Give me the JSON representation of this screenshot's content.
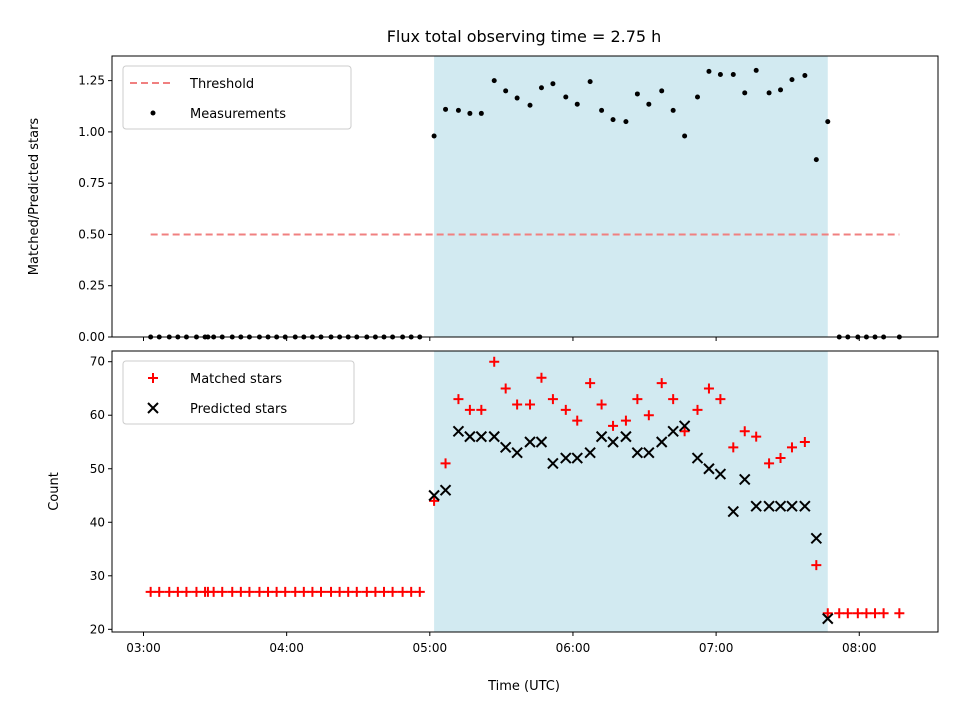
{
  "chart_data": {
    "type": "scatter",
    "title": "Flux total observing time = 2.75 h",
    "xlabel": "Time (UTC)",
    "x_tick_labels": [
      "03:00",
      "04:00",
      "05:00",
      "06:00",
      "07:00",
      "08:00"
    ],
    "x_tick_values": [
      3.0,
      4.0,
      5.0,
      6.0,
      7.0,
      8.0
    ],
    "xlim": [
      2.78,
      8.55
    ],
    "shaded_span": {
      "x0": 5.03,
      "x1": 7.78,
      "color": "#add8e6"
    },
    "panels": [
      {
        "ylabel": "Matched/Predicted stars",
        "ylim": [
          0,
          1.37
        ],
        "y_tick_labels": [
          "0.00",
          "0.25",
          "0.50",
          "0.75",
          "1.00",
          "1.25"
        ],
        "y_tick_values": [
          0,
          0.25,
          0.5,
          0.75,
          1.0,
          1.25
        ],
        "legend_placement": "top-left",
        "series": [
          {
            "name": "Threshold",
            "style": "dashed-line",
            "color": "#f08080",
            "x": [
              3.05,
              8.28
            ],
            "y": [
              0.5,
              0.5
            ]
          },
          {
            "name": "Measurements",
            "style": "dot",
            "color": "#000000",
            "x": [
              3.05,
              3.11,
              3.18,
              3.24,
              3.3,
              3.37,
              3.43,
              3.45,
              3.49,
              3.55,
              3.62,
              3.68,
              3.74,
              3.81,
              3.87,
              3.93,
              3.99,
              4.06,
              4.12,
              4.18,
              4.24,
              4.31,
              4.37,
              4.43,
              4.49,
              4.56,
              4.62,
              4.68,
              4.74,
              4.81,
              4.87,
              4.93,
              5.03,
              5.11,
              5.2,
              5.28,
              5.36,
              5.45,
              5.53,
              5.61,
              5.7,
              5.78,
              5.86,
              5.95,
              6.03,
              6.12,
              6.2,
              6.28,
              6.37,
              6.45,
              6.53,
              6.62,
              6.7,
              6.78,
              6.87,
              6.95,
              7.03,
              7.12,
              7.2,
              7.28,
              7.37,
              7.45,
              7.53,
              7.62,
              7.7,
              7.78,
              7.86,
              7.92,
              7.99,
              8.05,
              8.11,
              8.17,
              8.28
            ],
            "y": [
              0,
              0,
              0,
              0,
              0,
              0,
              0,
              0,
              0,
              0,
              0,
              0,
              0,
              0,
              0,
              0,
              0,
              0,
              0,
              0,
              0,
              0,
              0,
              0,
              0,
              0,
              0,
              0,
              0,
              0,
              0,
              0,
              0.98,
              1.11,
              1.105,
              1.09,
              1.09,
              1.25,
              1.2,
              1.165,
              1.13,
              1.215,
              1.235,
              1.17,
              1.135,
              1.245,
              1.105,
              1.06,
              1.05,
              1.185,
              1.135,
              1.2,
              1.105,
              0.98,
              1.17,
              1.295,
              1.28,
              1.28,
              1.19,
              1.3,
              1.19,
              1.205,
              1.255,
              1.275,
              0.865,
              1.05,
              0,
              0,
              0,
              0,
              0,
              0,
              0
            ]
          }
        ]
      },
      {
        "ylabel": "Count",
        "ylim": [
          19.5,
          72
        ],
        "y_tick_labels": [
          "20",
          "30",
          "40",
          "50",
          "60",
          "70"
        ],
        "y_tick_values": [
          20,
          30,
          40,
          50,
          60,
          70
        ],
        "legend_placement": "top-left",
        "series": [
          {
            "name": "Matched stars",
            "style": "plus",
            "color": "#ff0000",
            "x": [
              3.05,
              3.11,
              3.18,
              3.24,
              3.3,
              3.37,
              3.43,
              3.45,
              3.49,
              3.55,
              3.62,
              3.68,
              3.74,
              3.81,
              3.87,
              3.93,
              3.99,
              4.06,
              4.12,
              4.18,
              4.24,
              4.31,
              4.37,
              4.43,
              4.49,
              4.56,
              4.62,
              4.68,
              4.74,
              4.81,
              4.87,
              4.93,
              5.03,
              5.11,
              5.2,
              5.28,
              5.36,
              5.45,
              5.53,
              5.61,
              5.7,
              5.78,
              5.86,
              5.95,
              6.03,
              6.12,
              6.2,
              6.28,
              6.37,
              6.45,
              6.53,
              6.62,
              6.7,
              6.78,
              6.87,
              6.95,
              7.03,
              7.12,
              7.2,
              7.28,
              7.37,
              7.45,
              7.53,
              7.62,
              7.7,
              7.78,
              7.86,
              7.92,
              7.99,
              8.05,
              8.11,
              8.17,
              8.28
            ],
            "y": [
              27,
              27,
              27,
              27,
              27,
              27,
              27,
              27,
              27,
              27,
              27,
              27,
              27,
              27,
              27,
              27,
              27,
              27,
              27,
              27,
              27,
              27,
              27,
              27,
              27,
              27,
              27,
              27,
              27,
              27,
              27,
              27,
              44,
              51,
              63,
              61,
              61,
              70,
              65,
              62,
              62,
              67,
              63,
              61,
              59,
              66,
              62,
              58,
              59,
              63,
              60,
              66,
              63,
              57,
              61,
              65,
              63,
              54,
              57,
              56,
              51,
              52,
              54,
              55,
              32,
              23,
              23,
              23,
              23,
              23,
              23,
              23,
              23
            ]
          },
          {
            "name": "Predicted stars",
            "style": "x",
            "color": "#000000",
            "x": [
              5.03,
              5.11,
              5.2,
              5.28,
              5.36,
              5.45,
              5.53,
              5.61,
              5.7,
              5.78,
              5.86,
              5.95,
              6.03,
              6.12,
              6.2,
              6.28,
              6.37,
              6.45,
              6.53,
              6.62,
              6.7,
              6.78,
              6.87,
              6.95,
              7.03,
              7.12,
              7.2,
              7.28,
              7.37,
              7.45,
              7.53,
              7.62,
              7.7,
              7.78
            ],
            "y": [
              45,
              46,
              57,
              56,
              56,
              56,
              54,
              53,
              55,
              55,
              51,
              52,
              52,
              53,
              56,
              55,
              56,
              53,
              53,
              55,
              57,
              58,
              52,
              50,
              49,
              42,
              48,
              43,
              43,
              43,
              43,
              43,
              37,
              22
            ]
          }
        ]
      }
    ]
  }
}
